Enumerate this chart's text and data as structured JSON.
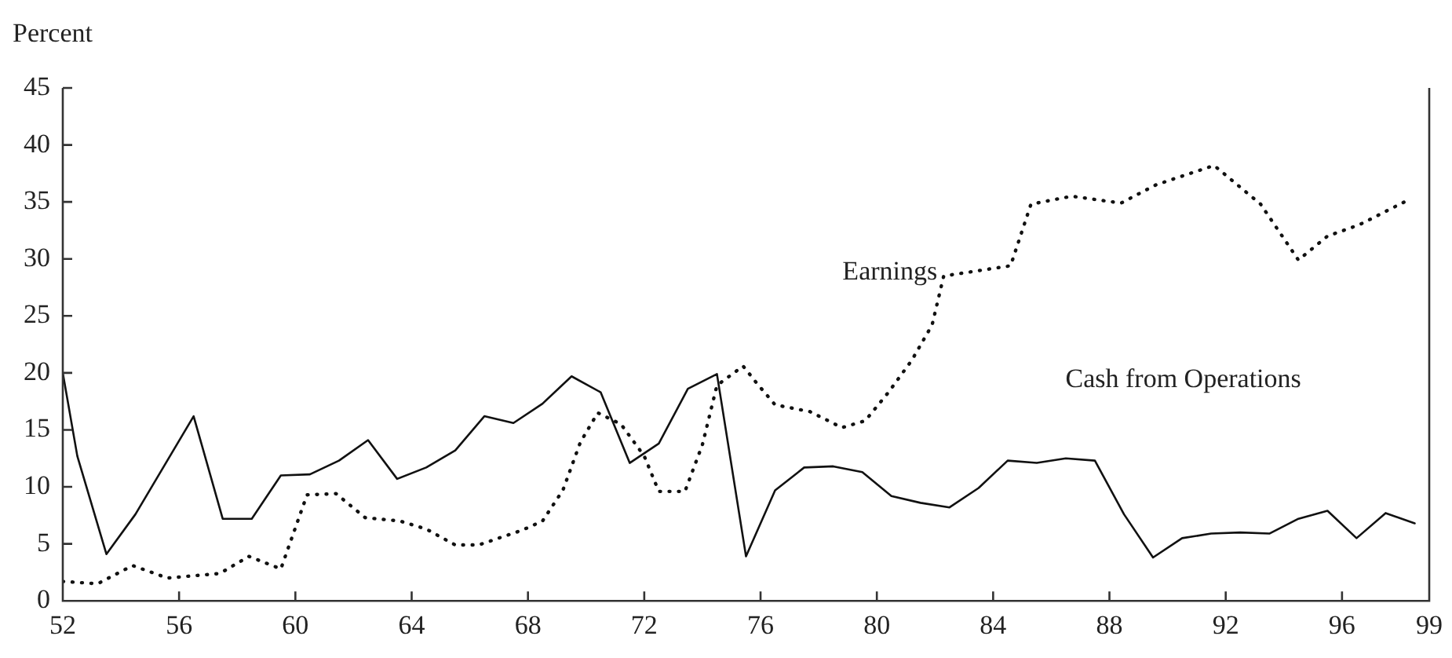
{
  "chart_data": {
    "type": "line",
    "ylabel": "Percent",
    "xlim": [
      52,
      99
    ],
    "xticks": [
      52,
      56,
      60,
      64,
      68,
      72,
      76,
      80,
      84,
      88,
      92,
      96,
      99
    ],
    "ylim": [
      0,
      45
    ],
    "yticks": [
      0,
      5,
      10,
      15,
      20,
      25,
      30,
      35,
      40,
      45
    ],
    "grid": false,
    "legend": false,
    "marker": "none",
    "series": [
      {
        "name": "Cash from Operations",
        "color": "#111111",
        "line_style": "solid",
        "x": [
          52,
          52.5,
          53.5,
          54.5,
          56.5,
          57.5,
          58.5,
          59.5,
          60.5,
          61.5,
          62.5,
          63.5,
          64.5,
          65.5,
          66.5,
          67.5,
          68.5,
          69.5,
          70.5,
          71.5,
          72.5,
          73.5,
          74.5,
          75.5,
          76.5,
          77.5,
          78.5,
          79.5,
          80.5,
          81.5,
          82.5,
          83.5,
          84.5,
          85.5,
          86.5,
          87.5,
          88.5,
          89.5,
          90.5,
          91.5,
          92.5,
          93.5,
          94.5,
          95.5,
          96.5,
          97.5,
          98.5
        ],
        "values": [
          20,
          12.7,
          4.1,
          7.6,
          16.2,
          7.2,
          7.2,
          11,
          11.1,
          12.3,
          14.1,
          10.7,
          11.7,
          13.2,
          16.2,
          15.6,
          17.3,
          19.7,
          18.3,
          12.1,
          13.8,
          18.6,
          19.9,
          3.9,
          9.7,
          11.7,
          11.8,
          11.3,
          9.2,
          8.6,
          8.2,
          9.9,
          12.3,
          12.1,
          12.5,
          12.3,
          7.6,
          3.8,
          5.5,
          5.9,
          6,
          5.9,
          7.2,
          7.9,
          5.5,
          7.7,
          6.8
        ]
      },
      {
        "name": "Earnings",
        "color": "#111111",
        "line_style": "dotted",
        "x": [
          52,
          53.2,
          54.4,
          55.6,
          57.4,
          58.4,
          59.5,
          60.4,
          61.4,
          62.4,
          63.6,
          64.5,
          65.5,
          66.3,
          67.8,
          68.5,
          69.2,
          69.8,
          70.4,
          71.2,
          72,
          72.5,
          73.4,
          74,
          74.5,
          75.4,
          75.9,
          76.5,
          77.7,
          78.8,
          79.6,
          80.4,
          81.2,
          81.9,
          82.3,
          84.6,
          85.3,
          86.7,
          88.4,
          89.6,
          91.6,
          93.2,
          94.5,
          95.5,
          96.6,
          98.3
        ],
        "values": [
          1.7,
          1.5,
          3.1,
          2,
          2.4,
          3.9,
          2.8,
          9.3,
          9.4,
          7.3,
          7,
          6.3,
          4.9,
          4.9,
          6.2,
          7,
          9.7,
          13.9,
          16.5,
          15.5,
          12.7,
          9.6,
          9.6,
          13.7,
          18.9,
          20.6,
          19,
          17.2,
          16.6,
          15.2,
          15.8,
          18.3,
          21.1,
          24.2,
          28.5,
          29.4,
          34.8,
          35.5,
          34.9,
          36.5,
          38.2,
          34.8,
          29.9,
          32,
          33,
          35.2
        ]
      }
    ]
  }
}
